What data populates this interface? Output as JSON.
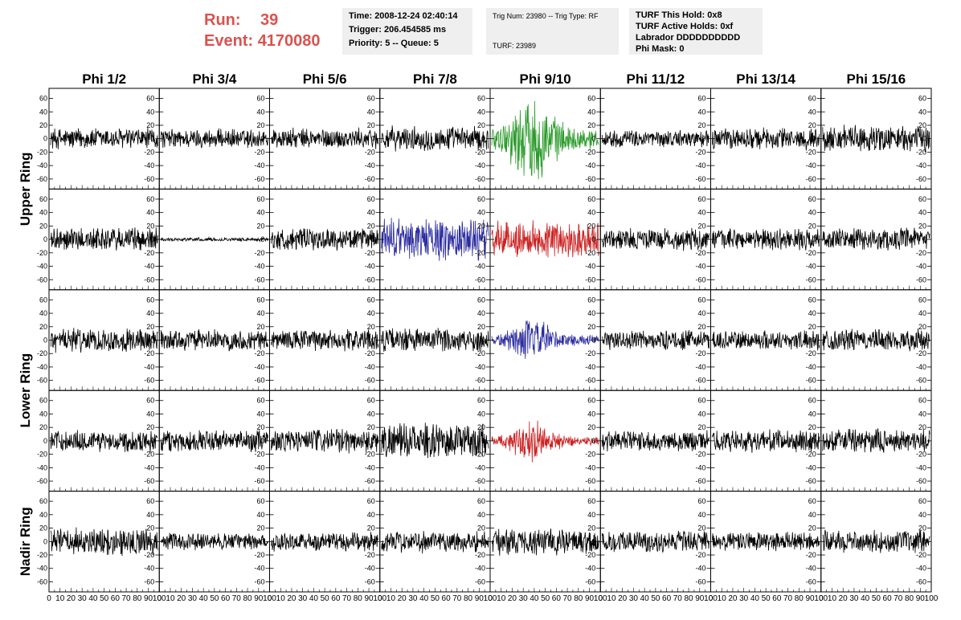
{
  "header": {
    "run_label": "Run:",
    "run_value": "39",
    "event_label": "Event:",
    "event_value": "4170080",
    "time": "Time: 2008-12-24 02:40:14",
    "trigger": "Trigger: 206.454585 ms",
    "priority": "Priority: 5 -- Queue: 5",
    "trig_num": "Trig Num: 23980 -- Trig Type: RF",
    "turf": "TURF: 23989",
    "turf_hold": "TURF This Hold: 0x8",
    "turf_active": "TURF Active Holds: 0xf",
    "labrador": "Labrador DDDDDDDDDD",
    "phi_mask": "Phi Mask: 0"
  },
  "colors": {
    "normal": "#000000",
    "green": "#2a9a2a",
    "blue": "#2a2aa0",
    "red": "#cc2222"
  },
  "chart_data": {
    "type": "line",
    "columns": [
      "Phi 1/2",
      "Phi 3/4",
      "Phi 5/6",
      "Phi 7/8",
      "Phi 9/10",
      "Phi 11/12",
      "Phi 13/14",
      "Phi 15/16"
    ],
    "rows": [
      "Upper Ring",
      "Lower Ring",
      "Nadir Ring"
    ],
    "row_label_spans": [
      2,
      2,
      1
    ],
    "ylim": [
      -75,
      75
    ],
    "xlim": [
      0,
      100
    ],
    "yticks_left": [
      "60",
      "40",
      "20",
      "0",
      "-20",
      "-40",
      "-60"
    ],
    "yticks_right": [
      "60",
      "40",
      "20",
      "0",
      "-20",
      "-40",
      "-60"
    ],
    "xticks": [
      "0",
      "10",
      "20",
      "30",
      "40",
      "50",
      "60",
      "70",
      "80",
      "90",
      "100"
    ],
    "panels": [
      [
        {
          "amp": 18,
          "color": "normal"
        },
        {
          "amp": 16,
          "color": "normal"
        },
        {
          "amp": 17,
          "color": "normal"
        },
        {
          "amp": 20,
          "color": "normal"
        },
        {
          "amp": 65,
          "color": "green",
          "burst": true
        },
        {
          "amp": 14,
          "color": "normal"
        },
        {
          "amp": 18,
          "color": "normal"
        },
        {
          "amp": 22,
          "color": "normal"
        }
      ],
      [
        {
          "amp": 20,
          "color": "normal"
        },
        {
          "amp": 3,
          "color": "normal"
        },
        {
          "amp": 18,
          "color": "normal"
        },
        {
          "amp": 35,
          "color": "blue"
        },
        {
          "amp": 30,
          "color": "red"
        },
        {
          "amp": 18,
          "color": "normal"
        },
        {
          "amp": 17,
          "color": "normal"
        },
        {
          "amp": 18,
          "color": "normal"
        }
      ],
      [
        {
          "amp": 20,
          "color": "normal"
        },
        {
          "amp": 17,
          "color": "normal"
        },
        {
          "amp": 18,
          "color": "normal"
        },
        {
          "amp": 20,
          "color": "normal"
        },
        {
          "amp": 32,
          "color": "blue",
          "burst": true
        },
        {
          "amp": 16,
          "color": "normal"
        },
        {
          "amp": 16,
          "color": "normal"
        },
        {
          "amp": 18,
          "color": "normal"
        }
      ],
      [
        {
          "amp": 18,
          "color": "normal"
        },
        {
          "amp": 18,
          "color": "normal"
        },
        {
          "amp": 20,
          "color": "normal"
        },
        {
          "amp": 28,
          "color": "normal"
        },
        {
          "amp": 30,
          "color": "red",
          "burst": true
        },
        {
          "amp": 17,
          "color": "normal"
        },
        {
          "amp": 18,
          "color": "normal"
        },
        {
          "amp": 20,
          "color": "normal"
        }
      ],
      [
        {
          "amp": 22,
          "color": "normal"
        },
        {
          "amp": 14,
          "color": "normal"
        },
        {
          "amp": 16,
          "color": "normal"
        },
        {
          "amp": 18,
          "color": "normal"
        },
        {
          "amp": 22,
          "color": "normal"
        },
        {
          "amp": 18,
          "color": "normal"
        },
        {
          "amp": 16,
          "color": "normal"
        },
        {
          "amp": 18,
          "color": "normal"
        }
      ]
    ]
  }
}
